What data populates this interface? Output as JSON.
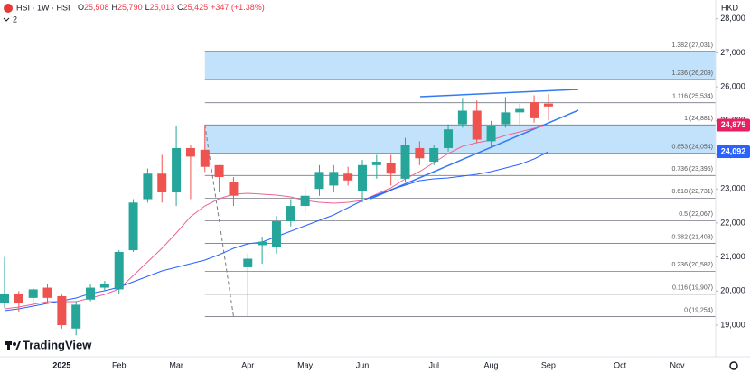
{
  "chart_data": {
    "type": "candlestick",
    "title": "HSI · 1W · HSI",
    "ohlc": [
      {
        "key": "O",
        "label": "25,508"
      },
      {
        "key": "H",
        "label": "25,790"
      },
      {
        "key": "L",
        "label": "25,013"
      },
      {
        "key": "C",
        "label": "25,425"
      }
    ],
    "change": "+347 (+1.38%)",
    "currency": "HKD",
    "indicator_count": "2",
    "branding": "TradingView",
    "categories": [
      null,
      null,
      null,
      null,
      "2025",
      null,
      null,
      null,
      "Feb",
      null,
      null,
      null,
      "Mar",
      null,
      null,
      null,
      null,
      "Apr",
      null,
      null,
      null,
      "May",
      null,
      null,
      null,
      "Jun",
      null,
      null,
      null,
      null,
      "Jul",
      null,
      null,
      null,
      "Aug",
      null,
      null,
      null,
      "Sep",
      null,
      null,
      null,
      null,
      "Oct",
      null,
      null,
      null,
      "Nov",
      null,
      null
    ],
    "candles": {
      "up_color": "#26a69a",
      "down_color": "#ef5350",
      "open": [
        19650,
        19930,
        19800,
        20100,
        19850,
        18900,
        19750,
        20100,
        20050,
        21200,
        22700,
        23450,
        22900,
        24200,
        24150,
        23700,
        23200,
        20700,
        21350,
        21300,
        22050,
        22500,
        23000,
        23100,
        23450,
        22950,
        23700,
        23750,
        23300,
        24200,
        23800,
        24200,
        24900,
        25300,
        24400,
        24900,
        25250,
        25550,
        25508,
        null,
        null,
        null,
        null,
        null,
        null,
        null,
        null,
        null,
        null,
        null
      ],
      "high": [
        21000,
        20000,
        20100,
        20200,
        19900,
        19700,
        20200,
        20300,
        21200,
        22700,
        23600,
        24000,
        24850,
        24300,
        24881,
        23700,
        23350,
        21100,
        21600,
        22200,
        22700,
        23000,
        23700,
        23700,
        23650,
        23850,
        24000,
        24000,
        24500,
        24400,
        24300,
        24900,
        25650,
        25600,
        25000,
        25700,
        25500,
        25750,
        25790,
        null,
        null,
        null,
        null,
        null,
        null,
        null,
        null,
        null,
        null,
        null
      ],
      "low": [
        19500,
        19400,
        19600,
        19650,
        18900,
        18700,
        19700,
        20000,
        19900,
        21150,
        22600,
        22600,
        22500,
        22700,
        23500,
        22900,
        22500,
        19254,
        20800,
        21100,
        21900,
        22300,
        22800,
        22900,
        23100,
        22600,
        23300,
        23100,
        23200,
        23700,
        23700,
        24100,
        24800,
        24350,
        24200,
        24800,
        24900,
        24950,
        25013,
        null,
        null,
        null,
        null,
        null,
        null,
        null,
        null,
        null,
        null,
        null
      ],
      "close": [
        19930,
        19650,
        20050,
        19800,
        19000,
        19600,
        20100,
        20200,
        21150,
        22600,
        23450,
        22900,
        24200,
        23950,
        23650,
        23350,
        22800,
        20950,
        21450,
        22050,
        22500,
        22800,
        23500,
        23500,
        23250,
        23700,
        23800,
        23450,
        24300,
        23900,
        24200,
        24750,
        25300,
        24450,
        24850,
        25250,
        25350,
        25078,
        25425,
        null,
        null,
        null,
        null,
        null,
        null,
        null,
        null,
        null,
        null,
        null
      ]
    },
    "moving_averages": [
      {
        "color": "#f06292",
        "values": [
          19478,
          19531,
          19610,
          19690,
          19690,
          19690,
          19796,
          19902,
          20061,
          20459,
          20857,
          21255,
          21706,
          22184,
          22502,
          22714,
          22847,
          22873,
          22847,
          22820,
          22767,
          22661,
          22608,
          22582,
          22608,
          22661,
          22847,
          23033,
          23298,
          23510,
          23775,
          24041,
          24253,
          24359,
          24439,
          24571,
          24677,
          24783,
          24875,
          null,
          null,
          null,
          null,
          null,
          null,
          null,
          null,
          null,
          null,
          null
        ]
      },
      {
        "color": "#2962ff",
        "values": [
          19424,
          19478,
          19557,
          19637,
          19716,
          19796,
          19929,
          20008,
          20114,
          20273,
          20433,
          20592,
          20698,
          20804,
          20910,
          21069,
          21255,
          21388,
          21441,
          21600,
          21759,
          21918,
          22077,
          22237,
          22449,
          22661,
          22820,
          22980,
          23112,
          23245,
          23298,
          23324,
          23377,
          23430,
          23510,
          23616,
          23722,
          23882,
          24092,
          null,
          null,
          null,
          null,
          null,
          null,
          null,
          null,
          null,
          null,
          null
        ]
      }
    ],
    "fib_levels": [
      {
        "label": "1.382 (27,031)",
        "value": 27031,
        "fill": "#bbdefb"
      },
      {
        "label": "1.236 (26,209)",
        "value": 26209
      },
      {
        "label": "1.116 (25,534)",
        "value": 25534
      },
      {
        "label": "1 (24,881)",
        "value": 24881,
        "fill": "#bbdefb"
      },
      {
        "label": "0.853 (24,054)",
        "value": 24054
      },
      {
        "label": "0.736 (23,395)",
        "value": 23395
      },
      {
        "label": "0.618 (22,731)",
        "value": 22731
      },
      {
        "label": "0.5 (22,067)",
        "value": 22067
      },
      {
        "label": "0.382 (21,403)",
        "value": 21403
      },
      {
        "label": "0.236 (20,582)",
        "value": 20582
      },
      {
        "label": "0.116 (19,907)",
        "value": 19907
      },
      {
        "label": "0 (19,254)",
        "value": 19254
      }
    ],
    "price_labels": [
      {
        "value": 24875,
        "label": "24,875",
        "color": "#e91e63"
      },
      {
        "value": 24092,
        "label": "24,092",
        "color": "#2962ff"
      }
    ],
    "ylim": [
      18072,
      28549
    ],
    "yticks": [
      {
        "value": 19000,
        "label": "19,000"
      },
      {
        "value": 20000,
        "label": "20,000"
      },
      {
        "value": 21000,
        "label": "21,000"
      },
      {
        "value": 22000,
        "label": "22,000"
      },
      {
        "value": 23000,
        "label": "23,000"
      },
      {
        "value": 24000,
        "label": "24,000"
      },
      {
        "value": 25000,
        "label": "25,000"
      },
      {
        "value": 26000,
        "label": "26,000"
      },
      {
        "value": 27000,
        "label": "27,000"
      },
      {
        "value": 28000,
        "label": "28,000"
      }
    ],
    "grid": false
  }
}
